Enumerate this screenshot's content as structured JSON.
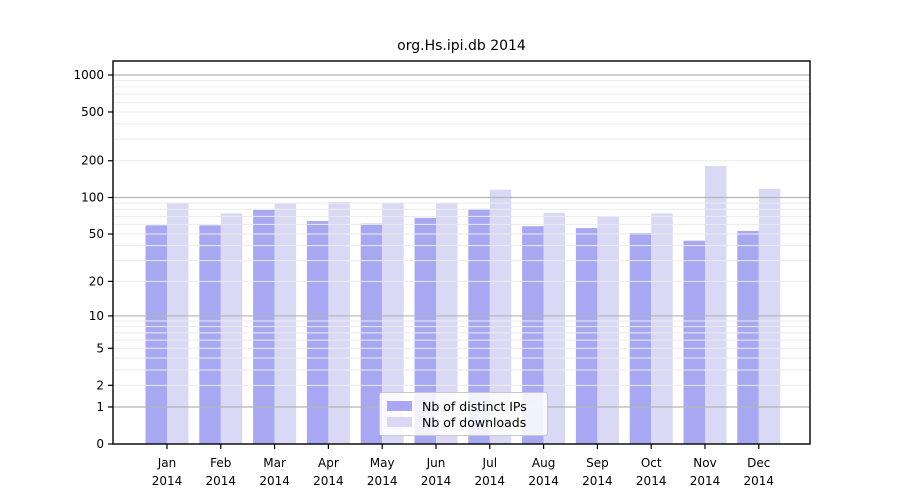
{
  "chart_data": {
    "type": "bar",
    "title": "org.Hs.ipi.db 2014",
    "categories": [
      "Jan",
      "Feb",
      "Mar",
      "Apr",
      "May",
      "Jun",
      "Jul",
      "Aug",
      "Sep",
      "Oct",
      "Nov",
      "Dec"
    ],
    "year_label": "2014",
    "series": [
      {
        "name": "Nb of distinct IPs",
        "color": "#a8a8f2",
        "values": [
          59,
          59,
          79,
          64,
          61,
          68,
          80,
          58,
          56,
          51,
          44,
          53
        ]
      },
      {
        "name": "Nb of downloads",
        "color": "#d9d9f6",
        "values": [
          90,
          74,
          89,
          92,
          91,
          91,
          116,
          75,
          70,
          74,
          181,
          118
        ]
      }
    ],
    "xlabel": "",
    "ylabel": "",
    "y_axis": {
      "scale": "log1p",
      "tick_labels": [
        "0",
        "1",
        "2",
        "5",
        "10",
        "20",
        "50",
        "100",
        "200",
        "500",
        "1000"
      ],
      "tick_values": [
        0,
        1,
        2,
        5,
        10,
        20,
        50,
        100,
        200,
        500,
        1000
      ],
      "ylim": [
        0,
        1300
      ]
    },
    "legend_position": "bottom-center-inside",
    "grid": {
      "major_color": "#b5b5b5",
      "minor_color": "#ebebeb",
      "minor_values": [
        2,
        3,
        4,
        5,
        6,
        7,
        8,
        9,
        20,
        30,
        40,
        50,
        60,
        70,
        80,
        90,
        200,
        300,
        400,
        500,
        600,
        700,
        800,
        900
      ],
      "major_values": [
        1,
        10,
        100,
        1000
      ]
    },
    "frame_color": "#000000"
  }
}
